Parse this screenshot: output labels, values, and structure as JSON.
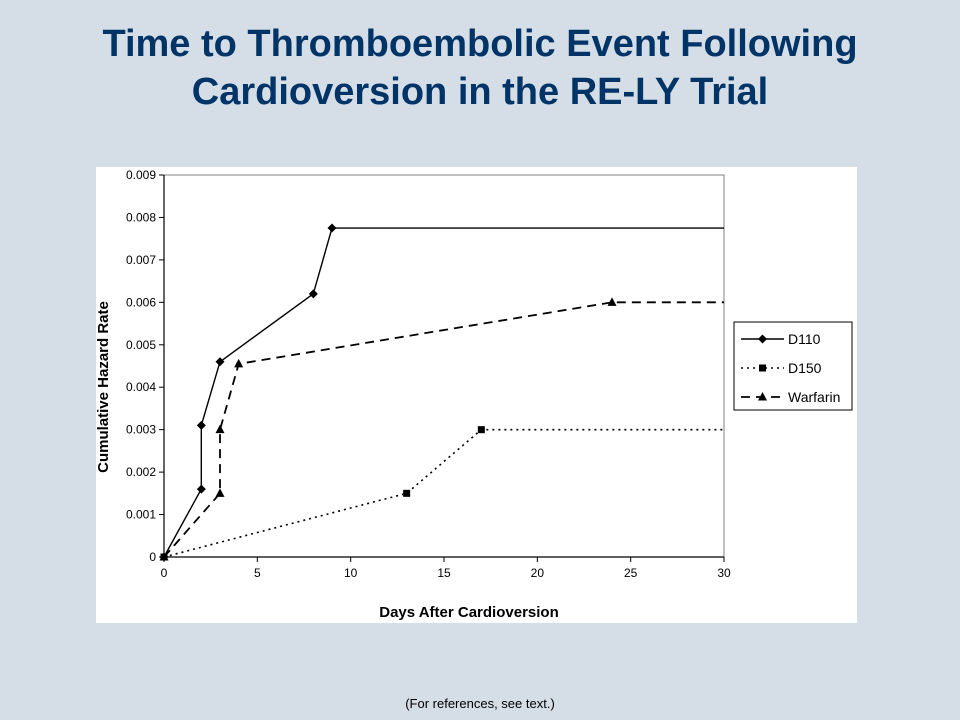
{
  "slide": {
    "title_line1": "Time to Thromboembolic Event Following",
    "title_line2": "Cardioversion in the RE-LY Trial",
    "footnote": "(For references, see text.)",
    "title_color": "#003366",
    "background_color": "#d5dde6"
  },
  "chart_data": {
    "type": "line",
    "xlabel": "Days After Cardioversion",
    "ylabel": "Cumulative Hazard Rate",
    "xlim": [
      0,
      30
    ],
    "ylim": [
      0,
      0.009
    ],
    "xticks": [
      0,
      5,
      10,
      15,
      20,
      25,
      30
    ],
    "xtick_labels": [
      "0",
      "5",
      "10",
      "15",
      "20",
      "25",
      "30"
    ],
    "yticks": [
      0,
      0.001,
      0.002,
      0.003,
      0.004,
      0.005,
      0.006,
      0.007,
      0.008,
      0.009
    ],
    "ytick_labels": [
      "0",
      "0.001",
      "0.002",
      "0.003",
      "0.004",
      "0.005",
      "0.006",
      "0.007",
      "0.008",
      "0.009"
    ],
    "grid": false,
    "legend_position": "right",
    "series": [
      {
        "name": "D110",
        "style": "solid",
        "marker": "diamond",
        "points": [
          [
            0,
            0
          ],
          [
            2,
            0.0016
          ],
          [
            2,
            0.0031
          ],
          [
            3,
            0.0046
          ],
          [
            8,
            0.0062
          ],
          [
            9,
            0.00775
          ]
        ],
        "line_points": [
          [
            0,
            0
          ],
          [
            2,
            0.0016
          ],
          [
            2,
            0.0031
          ],
          [
            3,
            0.0046
          ],
          [
            8,
            0.0062
          ],
          [
            9,
            0.00775
          ],
          [
            30,
            0.00775
          ]
        ]
      },
      {
        "name": "D150",
        "style": "dotted",
        "marker": "square",
        "points": [
          [
            0,
            0
          ],
          [
            13,
            0.0015
          ],
          [
            17,
            0.003
          ]
        ],
        "line_points": [
          [
            0,
            0
          ],
          [
            13,
            0.0015
          ],
          [
            17,
            0.003
          ],
          [
            30,
            0.003
          ]
        ]
      },
      {
        "name": "Warfarin",
        "style": "dashed",
        "marker": "triangle",
        "points": [
          [
            0,
            0
          ],
          [
            3,
            0.0015
          ],
          [
            3,
            0.003
          ],
          [
            4,
            0.00455
          ],
          [
            24,
            0.006
          ]
        ],
        "line_points": [
          [
            0,
            0
          ],
          [
            3,
            0.0015
          ],
          [
            3,
            0.003
          ],
          [
            4,
            0.00455
          ],
          [
            24,
            0.006
          ],
          [
            30,
            0.006
          ]
        ]
      }
    ]
  }
}
